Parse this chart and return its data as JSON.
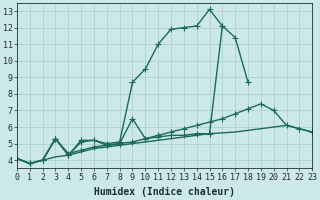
{
  "title": "",
  "xlabel": "Humidex (Indice chaleur)",
  "ylabel": "",
  "x": [
    0,
    1,
    2,
    3,
    4,
    5,
    6,
    7,
    8,
    9,
    10,
    11,
    12,
    13,
    14,
    15,
    16,
    17,
    18,
    19,
    20,
    21,
    22,
    23
  ],
  "series": [
    {
      "y": [
        4.1,
        3.8,
        4.0,
        5.3,
        4.3,
        5.2,
        5.2,
        5.0,
        5.1,
        8.7,
        9.5,
        11.0,
        11.9,
        12.0,
        12.1,
        13.1,
        12.1,
        null,
        null,
        null,
        null,
        null,
        null,
        null
      ],
      "color": "#1a6b5a",
      "linewidth": 1.0,
      "marker": "+",
      "markersize": 4,
      "linestyle": "-"
    },
    {
      "y": [
        4.1,
        3.8,
        4.0,
        5.3,
        4.3,
        5.1,
        5.2,
        4.9,
        5.0,
        6.5,
        5.3,
        5.4,
        5.5,
        5.5,
        5.6,
        5.6,
        12.1,
        11.4,
        8.7,
        null,
        null,
        null,
        null,
        null
      ],
      "color": "#1a6b5a",
      "linewidth": 1.0,
      "marker": "+",
      "markersize": 4,
      "linestyle": "-"
    },
    {
      "y": [
        4.1,
        3.8,
        4.0,
        5.3,
        4.4,
        4.6,
        4.8,
        4.9,
        5.0,
        5.1,
        5.3,
        5.5,
        5.7,
        5.9,
        6.1,
        6.3,
        6.5,
        6.8,
        7.1,
        7.4,
        7.0,
        6.1,
        5.9,
        5.7
      ],
      "color": "#1a6b5a",
      "linewidth": 1.0,
      "marker": "+",
      "markersize": 4,
      "linestyle": "-"
    },
    {
      "y": [
        4.1,
        3.8,
        4.0,
        4.2,
        4.3,
        4.5,
        4.7,
        4.8,
        4.9,
        5.0,
        5.1,
        5.2,
        5.3,
        5.4,
        5.5,
        5.6,
        5.65,
        5.7,
        5.8,
        5.9,
        6.0,
        6.1,
        5.9,
        5.7
      ],
      "color": "#1a6b5a",
      "linewidth": 1.0,
      "marker": null,
      "markersize": 3,
      "linestyle": "-"
    }
  ],
  "xlim": [
    0,
    23
  ],
  "ylim": [
    3.5,
    13.5
  ],
  "yticks": [
    4,
    5,
    6,
    7,
    8,
    9,
    10,
    11,
    12,
    13
  ],
  "xticks": [
    0,
    1,
    2,
    3,
    4,
    5,
    6,
    7,
    8,
    9,
    10,
    11,
    12,
    13,
    14,
    15,
    16,
    17,
    18,
    19,
    20,
    21,
    22,
    23
  ],
  "xtick_labels": [
    "0",
    "1",
    "2",
    "3",
    "4",
    "5",
    "6",
    "7",
    "8",
    "9",
    "10",
    "11",
    "12",
    "13",
    "14",
    "15",
    "16",
    "17",
    "18",
    "19",
    "20",
    "21",
    "22",
    "23"
  ],
  "bg_color": "#cce8e8",
  "grid_color": "#aacece",
  "line_color": "#1a6b5a",
  "tick_color": "#1a3030",
  "xlabel_fontsize": 7,
  "tick_fontsize": 6
}
